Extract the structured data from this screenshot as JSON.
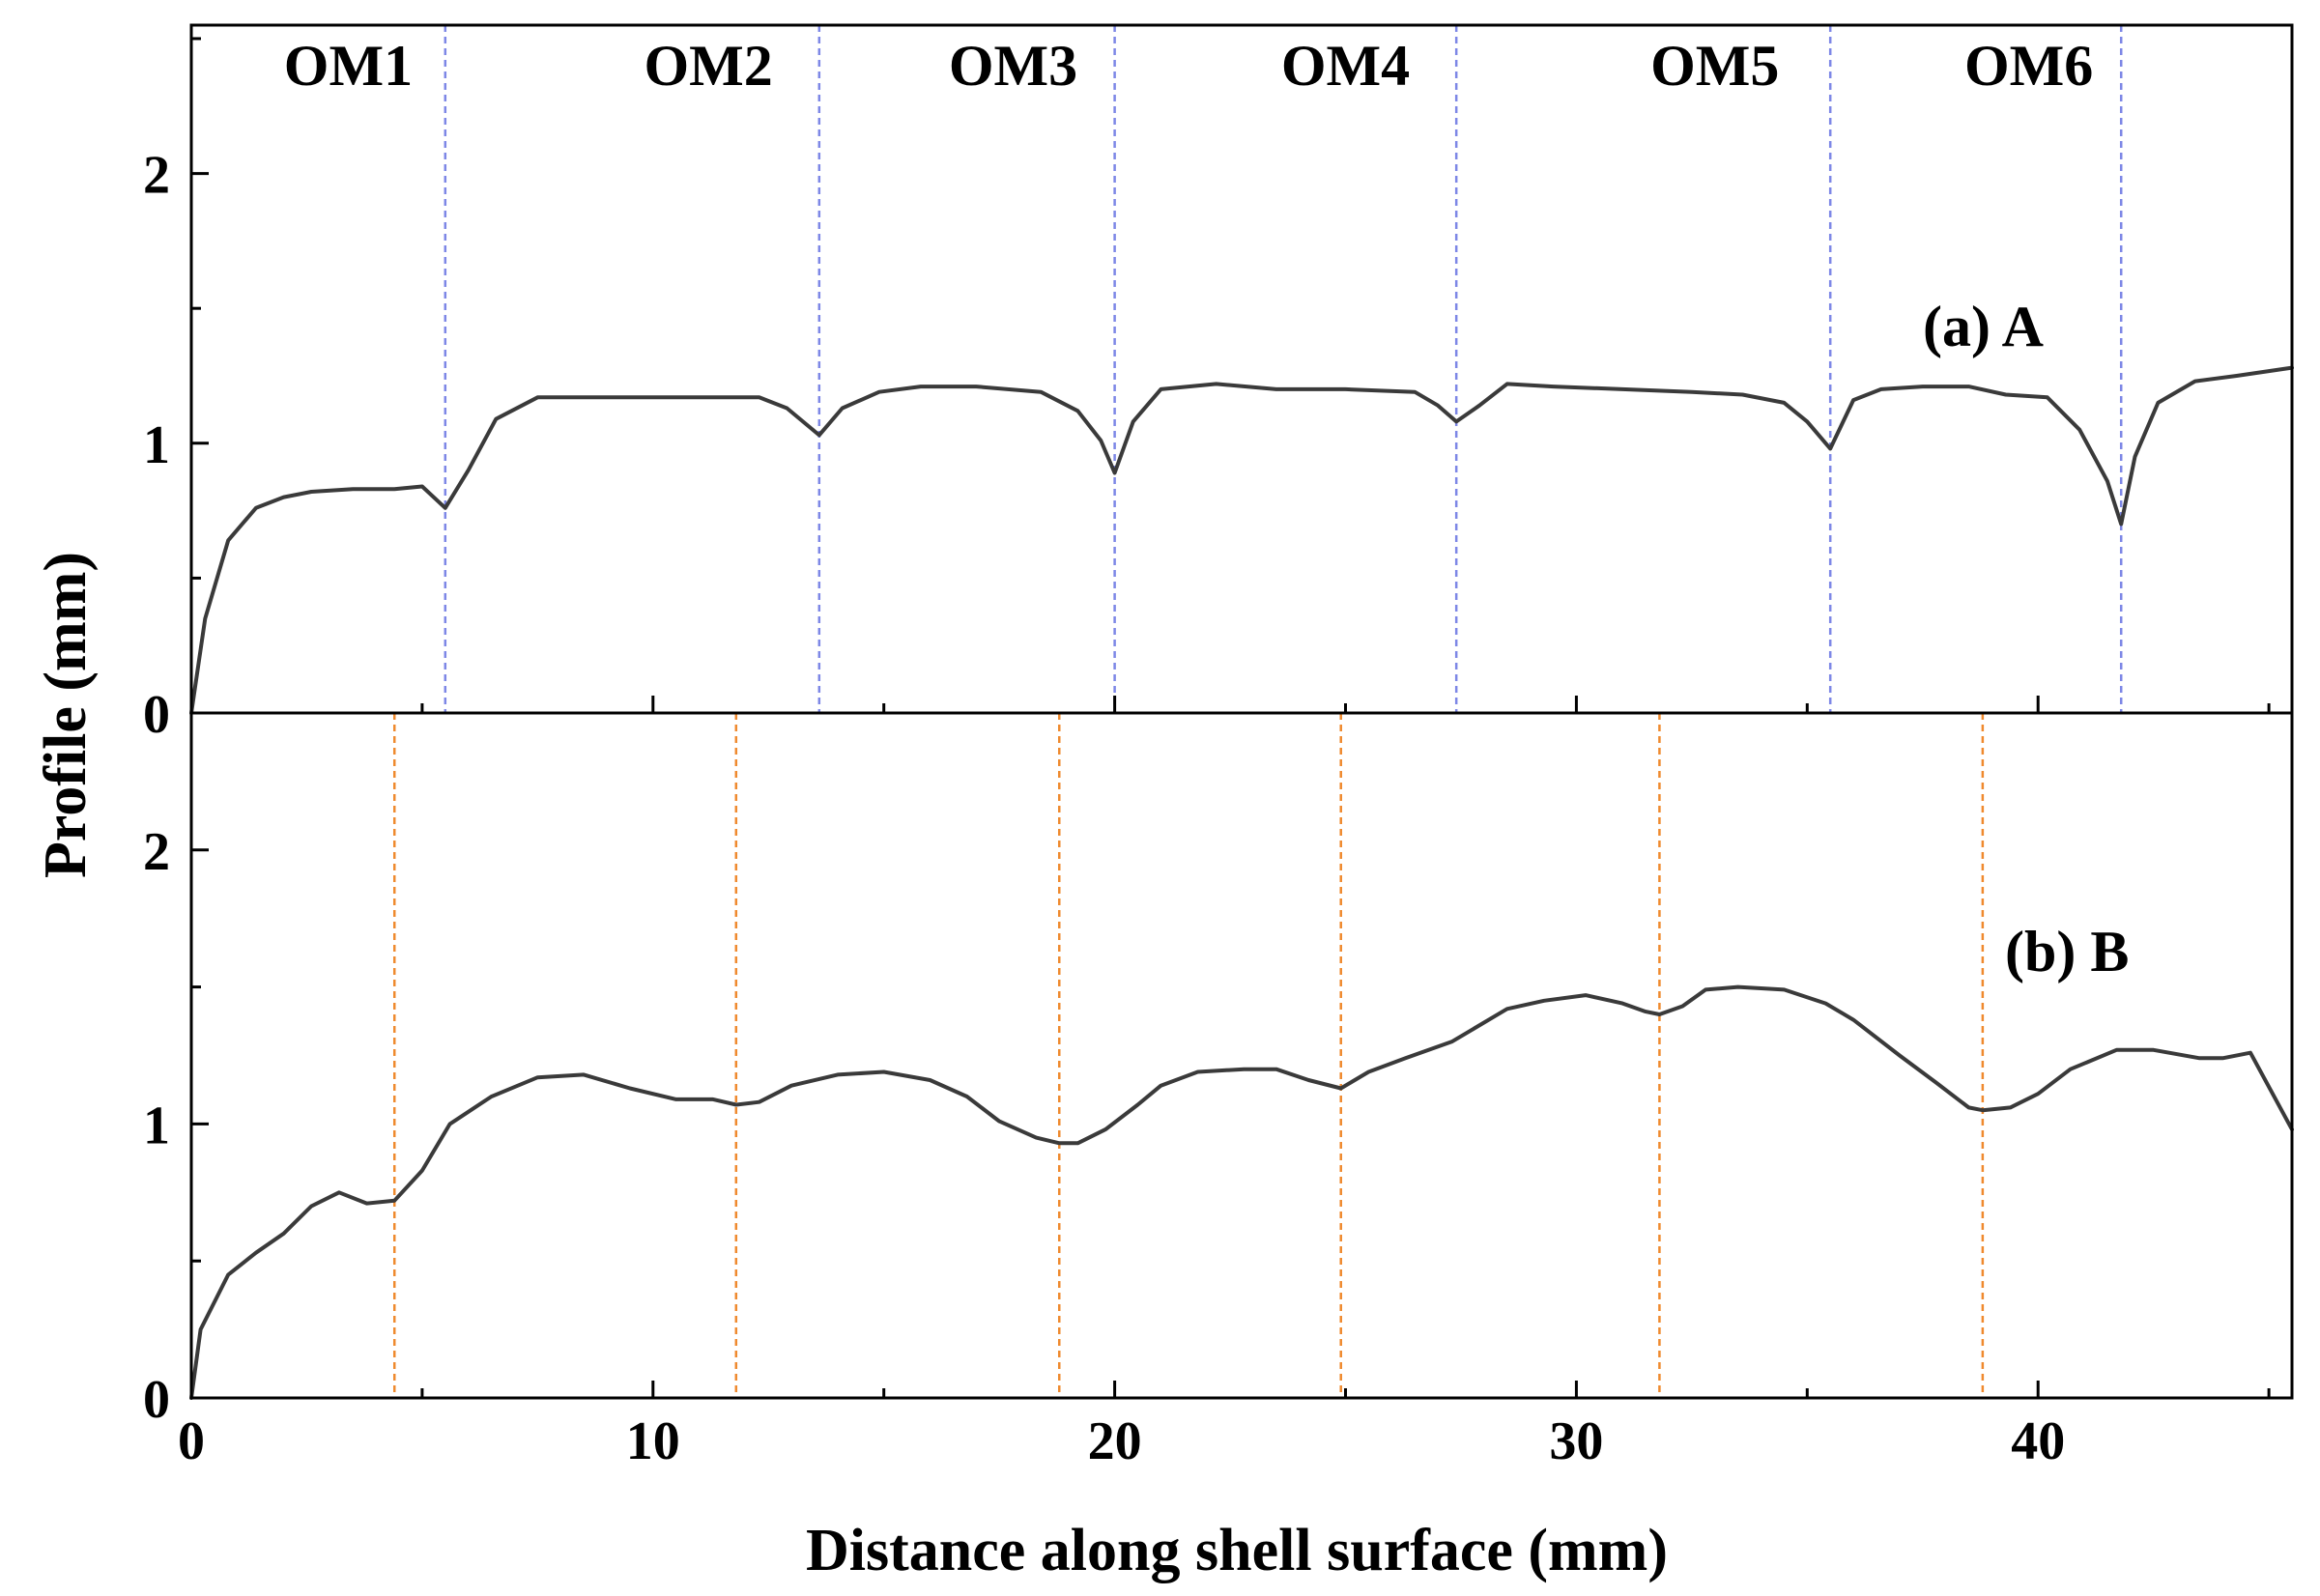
{
  "chart_data": {
    "type": "line",
    "xlabel": "Distance along shell surface (mm)",
    "ylabel": "Profile (mm)",
    "xlim": [
      0,
      45.5
    ],
    "xticks": [
      0,
      10,
      20,
      30,
      40
    ],
    "xtick_labels": [
      "0",
      "10",
      "20",
      "30",
      "40"
    ],
    "colors": {
      "line": "#3a3a3a",
      "panel_a_dividers": "#7d87e6",
      "panel_b_dividers": "#ef8a2e",
      "axes": "#000000"
    },
    "panels": [
      {
        "id": "a",
        "annotation": "(a) A",
        "ylim": [
          0,
          2.55
        ],
        "yticks": [
          0,
          1,
          2
        ],
        "ytick_labels": [
          "0",
          "1",
          "2"
        ],
        "region_labels": [
          "OM1",
          "OM2",
          "OM3",
          "OM4",
          "OM5",
          "OM6"
        ],
        "region_label_x": [
          3.4,
          11.2,
          17.8,
          25.0,
          33.0,
          39.8
        ],
        "dividers": [
          5.5,
          13.6,
          20.0,
          27.4,
          35.5,
          41.8
        ],
        "x": [
          0,
          0.3,
          0.8,
          1.4,
          2.0,
          2.6,
          3.5,
          4.4,
          5.0,
          5.5,
          6.0,
          6.6,
          7.5,
          8.5,
          10,
          11,
          12.3,
          12.9,
          13.6,
          14.1,
          14.9,
          15.8,
          17,
          18.4,
          19.2,
          19.7,
          20.0,
          20.4,
          21.0,
          22.2,
          23.5,
          25.0,
          26.5,
          27.0,
          27.4,
          27.9,
          28.5,
          29.5,
          31,
          32.5,
          33.6,
          34.5,
          35.0,
          35.5,
          36.0,
          36.6,
          37.5,
          38.5,
          39.3,
          40.2,
          40.9,
          41.5,
          41.8,
          42.1,
          42.6,
          43.4,
          44.3,
          45.5
        ],
        "y": [
          0,
          0.35,
          0.64,
          0.76,
          0.8,
          0.82,
          0.83,
          0.83,
          0.84,
          0.76,
          0.9,
          1.09,
          1.17,
          1.17,
          1.17,
          1.17,
          1.17,
          1.13,
          1.03,
          1.13,
          1.19,
          1.21,
          1.21,
          1.19,
          1.12,
          1.01,
          0.89,
          1.08,
          1.2,
          1.22,
          1.2,
          1.2,
          1.19,
          1.14,
          1.08,
          1.14,
          1.22,
          1.21,
          1.2,
          1.19,
          1.18,
          1.15,
          1.08,
          0.98,
          1.16,
          1.2,
          1.21,
          1.21,
          1.18,
          1.17,
          1.05,
          0.86,
          0.7,
          0.95,
          1.15,
          1.23,
          1.25,
          1.28
        ]
      },
      {
        "id": "b",
        "annotation": "(b) B",
        "ylim": [
          0,
          2.5
        ],
        "yticks": [
          0,
          1,
          2
        ],
        "ytick_labels": [
          "0",
          "1",
          "2"
        ],
        "dividers": [
          4.4,
          11.8,
          18.8,
          24.9,
          31.8,
          38.8
        ],
        "x": [
          0,
          0.2,
          0.8,
          1.4,
          2.0,
          2.6,
          3.2,
          3.8,
          4.4,
          5.0,
          5.6,
          6.5,
          7.5,
          8.5,
          9.5,
          10.5,
          11.3,
          11.8,
          12.3,
          13.0,
          14.0,
          15.0,
          16.0,
          16.8,
          17.5,
          18.3,
          18.8,
          19.2,
          19.8,
          20.5,
          21.0,
          21.8,
          22.8,
          23.5,
          24.2,
          24.9,
          25.5,
          26.3,
          27.3,
          28.0,
          28.5,
          29.3,
          30.2,
          31.0,
          31.5,
          31.8,
          32.3,
          32.8,
          33.5,
          34.5,
          35.4,
          36.0,
          37.0,
          37.8,
          38.5,
          38.8,
          39.4,
          40.0,
          40.7,
          41.7,
          42.5,
          43.5,
          44.0,
          44.6,
          45.5
        ],
        "y": [
          0,
          0.25,
          0.45,
          0.53,
          0.6,
          0.7,
          0.75,
          0.71,
          0.72,
          0.83,
          1.0,
          1.1,
          1.17,
          1.18,
          1.13,
          1.09,
          1.09,
          1.07,
          1.08,
          1.14,
          1.18,
          1.19,
          1.16,
          1.1,
          1.01,
          0.95,
          0.93,
          0.93,
          0.98,
          1.07,
          1.14,
          1.19,
          1.2,
          1.2,
          1.16,
          1.13,
          1.19,
          1.24,
          1.3,
          1.37,
          1.42,
          1.45,
          1.47,
          1.44,
          1.41,
          1.4,
          1.43,
          1.49,
          1.5,
          1.49,
          1.44,
          1.38,
          1.25,
          1.15,
          1.06,
          1.05,
          1.06,
          1.11,
          1.2,
          1.27,
          1.27,
          1.24,
          1.24,
          1.26,
          0.98
        ]
      }
    ]
  }
}
